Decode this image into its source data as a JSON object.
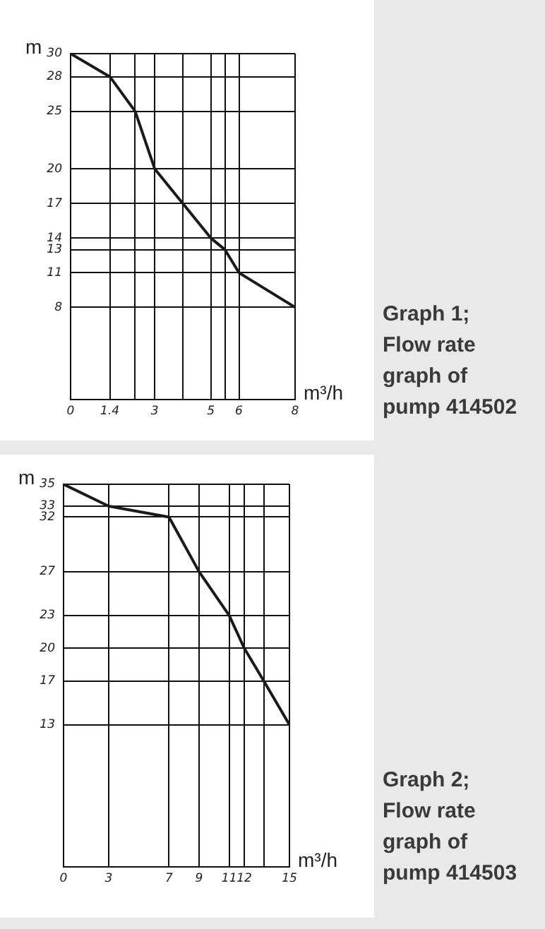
{
  "chart_data": [
    {
      "type": "line",
      "xlabel": "m³/h",
      "ylabel": "m",
      "annotations": [
        "Graph 1;",
        "Flow rate graph of pump 414502"
      ],
      "x": [
        0,
        1.4,
        2.3,
        3,
        4,
        5,
        5.5,
        6,
        8
      ],
      "series": [
        {
          "color": "#1a1a1a",
          "values": [
            30,
            28,
            25,
            20,
            17,
            14,
            13,
            11,
            8
          ]
        }
      ],
      "xlim": [
        0,
        8
      ],
      "xticks": [
        0,
        1.4,
        {
          "value": 2.3,
          "label": null
        },
        3,
        {
          "value": 4,
          "label": null
        },
        5,
        {
          "value": 5.5,
          "label": null
        },
        6,
        8
      ],
      "ylim": [
        0,
        30
      ],
      "yticks": [
        8,
        11,
        13,
        14,
        17,
        20,
        25,
        28,
        30
      ],
      "grid": true,
      "legend": false,
      "marker": "none",
      "line_style": "solid"
    },
    {
      "type": "line",
      "xlabel": "m³/h",
      "ylabel": "m",
      "annotations": [
        "Graph 2;",
        "Flow rate graph of pump 414503"
      ],
      "x": [
        0,
        3,
        7,
        9,
        11,
        12,
        13.3,
        15
      ],
      "series": [
        {
          "color": "#1a1a1a",
          "values": [
            35,
            33,
            32,
            27,
            23,
            20,
            17,
            13
          ]
        }
      ],
      "xlim": [
        0,
        15
      ],
      "xticks": [
        0,
        3,
        7,
        9,
        11,
        12,
        {
          "value": 13.3,
          "label": null
        },
        15
      ],
      "ylim": [
        0,
        35
      ],
      "yticks": [
        13,
        17,
        20,
        23,
        27,
        32,
        33,
        35
      ],
      "grid": true,
      "legend": false,
      "marker": "none",
      "line_style": "solid"
    }
  ]
}
